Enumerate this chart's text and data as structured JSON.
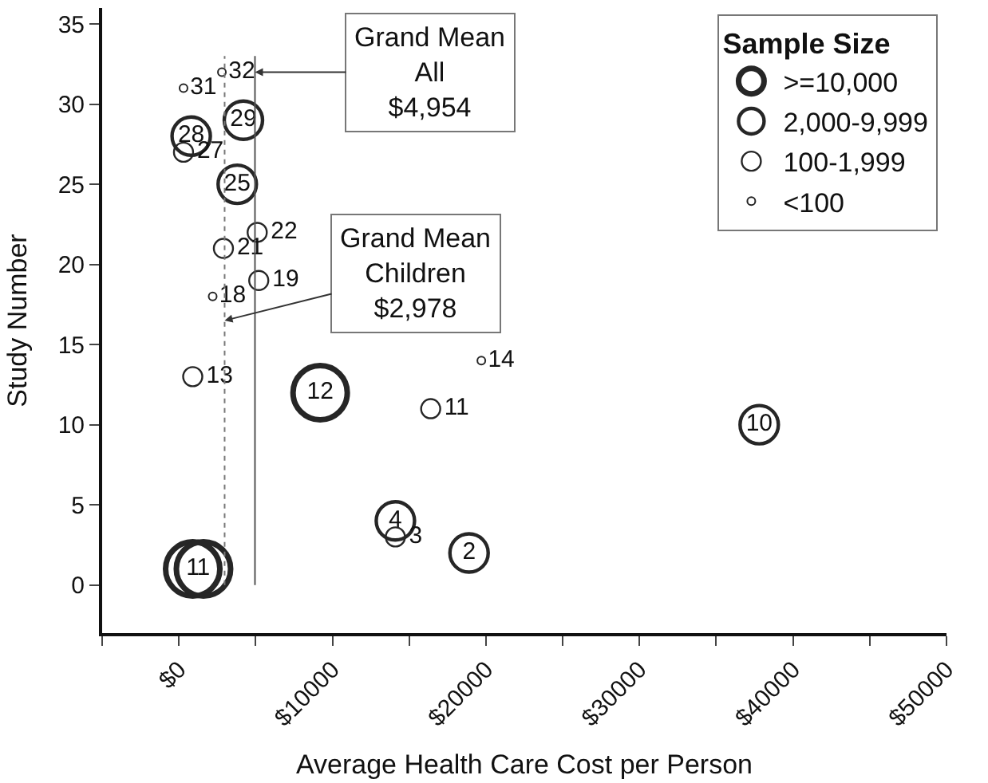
{
  "chart_data": {
    "type": "scatter",
    "xlabel": "Average Health Care Cost per Person",
    "ylabel": "Study Number",
    "legend_title": "Sample Size",
    "legend": "top right",
    "marker": "circle",
    "xlim": [
      -5000,
      50000
    ],
    "ylim": [
      -3,
      36
    ],
    "xticks": [
      {
        "value": -5000,
        "label": null
      },
      {
        "value": 0,
        "label": "$0"
      },
      {
        "value": 5000,
        "label": null
      },
      {
        "value": 10000,
        "label": "$10000"
      },
      {
        "value": 15000,
        "label": null
      },
      {
        "value": 20000,
        "label": "$20000"
      },
      {
        "value": 25000,
        "label": null
      },
      {
        "value": 30000,
        "label": "$30000"
      },
      {
        "value": 35000,
        "label": null
      },
      {
        "value": 40000,
        "label": "$40000"
      },
      {
        "value": 45000,
        "label": null
      },
      {
        "value": 50000,
        "label": "$50000"
      }
    ],
    "yticks": [
      0,
      5,
      10,
      15,
      20,
      25,
      30,
      35
    ],
    "series": [
      {
        "name": ">=10,000",
        "color": "#262626",
        "x": [
          900,
          1600,
          9200
        ],
        "values": [
          1,
          1,
          12
        ],
        "value_labels": [
          "1",
          "1",
          "12"
        ]
      },
      {
        "name": "2,000-9,999",
        "color": "#262626",
        "x": [
          4200,
          800,
          3800,
          37800,
          14100,
          18900
        ],
        "values": [
          29,
          28,
          25,
          10,
          4,
          2
        ],
        "value_labels": [
          "29",
          "28",
          "25",
          "10",
          "4",
          "2"
        ]
      },
      {
        "name": "100-1,999",
        "color": "#262626",
        "x": [
          300,
          5100,
          2900,
          5200,
          900,
          16400,
          14100
        ],
        "values": [
          27,
          22,
          21,
          19,
          13,
          11,
          3
        ],
        "value_labels": [
          "27",
          "22",
          "21",
          "19",
          "13",
          "11",
          "3"
        ]
      },
      {
        "name": "<100",
        "color": "#262626",
        "x": [
          2800,
          300,
          2200,
          19700
        ],
        "values": [
          32,
          31,
          18,
          14
        ],
        "value_labels": [
          "32",
          "31",
          "18",
          "14"
        ]
      }
    ],
    "ref_lines": [
      {
        "axis": "x",
        "value": 4954,
        "label": "Grand Mean\nAll\n$4,954",
        "color": "#555555",
        "line_style": "solid"
      },
      {
        "axis": "x",
        "value": 2978,
        "label": "Grand Mean\nChildren\n$2,978",
        "color": "#777777",
        "line_style": "dotted"
      }
    ]
  }
}
